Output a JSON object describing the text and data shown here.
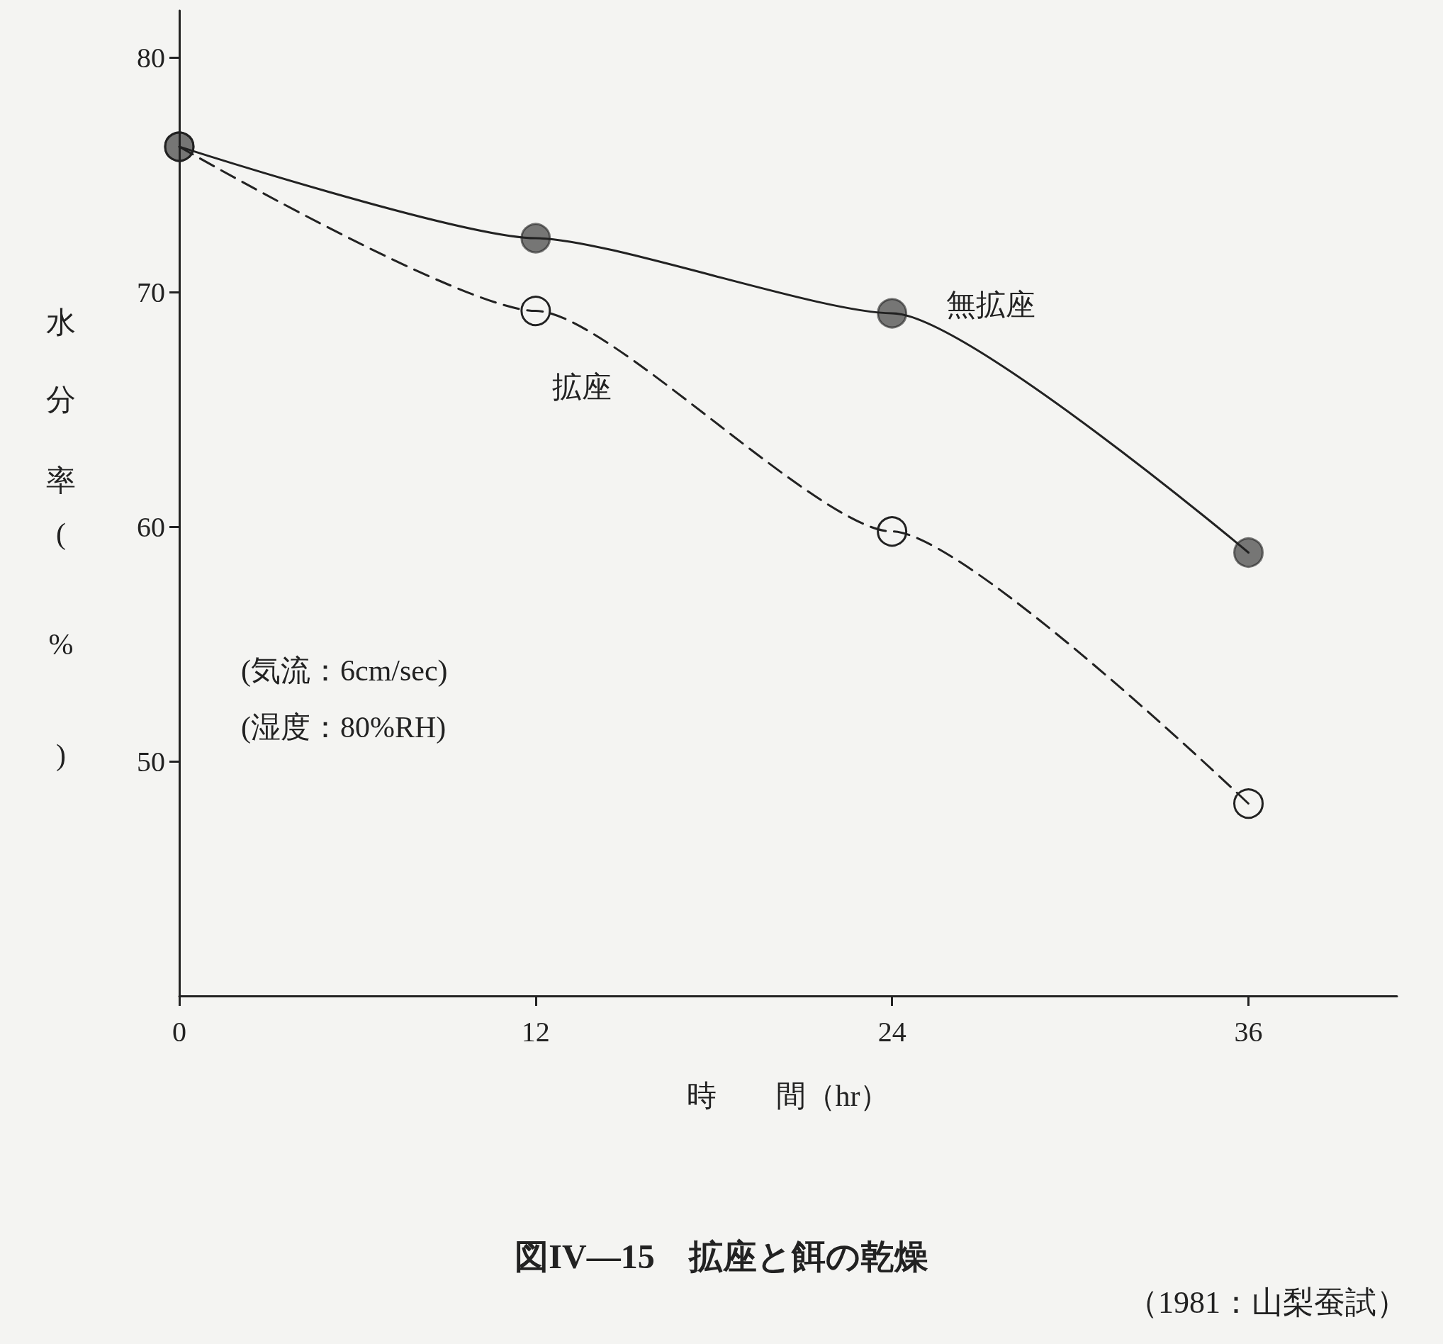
{
  "chart_data": {
    "type": "line",
    "title": "図IV—15　拡座と餌の乾燥",
    "xlabel": "時　　間（hr）",
    "ylabel": "水分率(%)",
    "annotations": [
      "(気流：6cm/sec)",
      "(湿度：80%RH)",
      "（1981：山梨蚕試）"
    ],
    "x": [
      0,
      12,
      24,
      36
    ],
    "series": [
      {
        "name": "無拡座",
        "color": "#222222",
        "values": [
          76.2,
          72.3,
          69.1,
          58.9
        ],
        "line_style": "solid",
        "marker": "circle"
      },
      {
        "name": "拡座",
        "color": "#222222",
        "values": [
          76.2,
          69.2,
          59.8,
          48.2
        ],
        "line_style": "dashed",
        "marker": "circle"
      }
    ],
    "xlim": [
      0,
      41
    ],
    "xticks": [
      0,
      12,
      24,
      36
    ],
    "ylim": [
      40,
      82
    ],
    "yticks": [
      50,
      60,
      70,
      80
    ],
    "grid": false,
    "legend": false
  }
}
